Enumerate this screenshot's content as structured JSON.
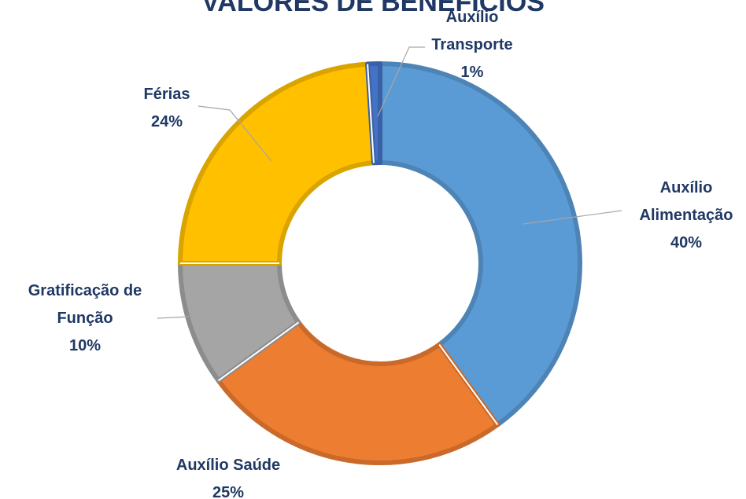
{
  "chart_data": {
    "type": "donut",
    "title": "VALORES DE BENEFÍCIOS",
    "categories": [
      "Auxílio Alimentação",
      "Auxílio Saúde",
      "Gratificação de Função",
      "Férias",
      "Auxílio Transporte"
    ],
    "values": [
      40,
      25,
      10,
      24,
      1
    ],
    "value_labels": [
      "40%",
      "25%",
      "10%",
      "24%",
      "1%"
    ],
    "colors": [
      "#5b9bd5",
      "#ed7d31",
      "#a5a5a5",
      "#ffc000",
      "#4472c4"
    ]
  }
}
